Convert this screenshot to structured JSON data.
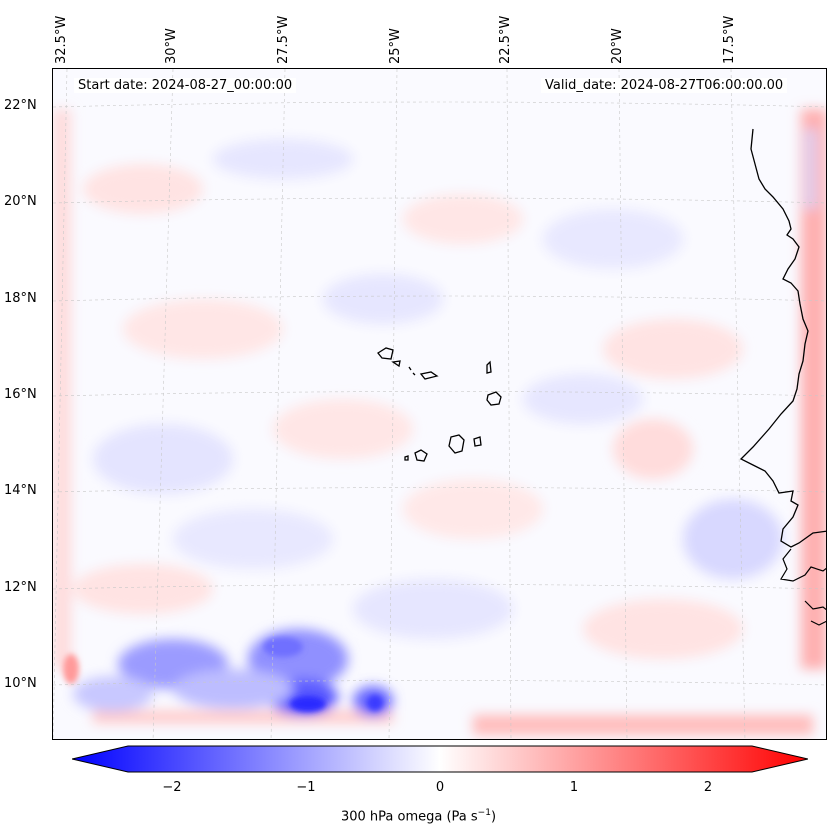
{
  "header": {
    "start_date": "Start date: 2024-08-27_00:00:00",
    "valid_date": "Valid_date: 2024-08-27T06:00:00.00"
  },
  "axes": {
    "lon_labels": [
      "32.5°W",
      "30°W",
      "27.5°W",
      "25°W",
      "22.5°W",
      "20°W",
      "17.5°W"
    ],
    "lat_labels": [
      "22°N",
      "20°N",
      "18°N",
      "16°N",
      "14°N",
      "12°N",
      "10°N"
    ]
  },
  "colorbar": {
    "ticks": [
      "−2",
      "−1",
      "0",
      "1",
      "2"
    ],
    "label_main": "300 hPa omega (Pa s",
    "label_sup": "−1",
    "label_end": ")",
    "range": [
      -2.7,
      2.7
    ],
    "colors": {
      "negative": "#0000ff",
      "zero": "#ffffff",
      "positive": "#ff0000"
    }
  },
  "map": {
    "variable": "omega",
    "level": "300 hPa",
    "features": [
      "coastline-west-africa",
      "cape-verde-islands"
    ]
  }
}
